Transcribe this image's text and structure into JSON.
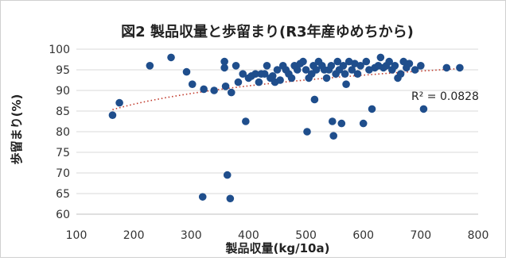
{
  "chart_data": {
    "type": "scatter",
    "title": "図2 製品収量と歩留まり(R3年産ゆめちから)",
    "xlabel": "製品収量(kg/10a)",
    "ylabel": "歩留まり(%)",
    "xlim": [
      100,
      800
    ],
    "ylim": [
      60,
      100
    ],
    "x_ticks": [
      "100",
      "200",
      "300",
      "400",
      "500",
      "600",
      "700",
      "800"
    ],
    "y_ticks": [
      "60",
      "65",
      "70",
      "75",
      "80",
      "85",
      "90",
      "95",
      "100"
    ],
    "grid": "horizontal",
    "legend": "none",
    "marker_color": "#1f4e8c",
    "trendline": {
      "style": "dotted",
      "color": "#c0392b",
      "type": "logarithmic"
    },
    "annotation": "R² = 0.0828",
    "points": [
      [
        163,
        84
      ],
      [
        175,
        87
      ],
      [
        228,
        96
      ],
      [
        265,
        98
      ],
      [
        292,
        94.5
      ],
      [
        302,
        91.5
      ],
      [
        320,
        64.2
      ],
      [
        322,
        90.3
      ],
      [
        340,
        90
      ],
      [
        358,
        97
      ],
      [
        358,
        95.5
      ],
      [
        360,
        91
      ],
      [
        363,
        69.5
      ],
      [
        368,
        63.8
      ],
      [
        370,
        89.5
      ],
      [
        378,
        96
      ],
      [
        382,
        92
      ],
      [
        390,
        94
      ],
      [
        395,
        82.5
      ],
      [
        400,
        93
      ],
      [
        405,
        93.5
      ],
      [
        412,
        94
      ],
      [
        418,
        92
      ],
      [
        422,
        94
      ],
      [
        428,
        94
      ],
      [
        432,
        96
      ],
      [
        438,
        93
      ],
      [
        442,
        93.5
      ],
      [
        446,
        92
      ],
      [
        450,
        95
      ],
      [
        455,
        92.5
      ],
      [
        460,
        96
      ],
      [
        465,
        95
      ],
      [
        470,
        94
      ],
      [
        475,
        93
      ],
      [
        480,
        96
      ],
      [
        485,
        95
      ],
      [
        490,
        96.5
      ],
      [
        495,
        97
      ],
      [
        500,
        95
      ],
      [
        502,
        80
      ],
      [
        505,
        93
      ],
      [
        510,
        94
      ],
      [
        513,
        96
      ],
      [
        515,
        87.8
      ],
      [
        518,
        95
      ],
      [
        522,
        97
      ],
      [
        528,
        96
      ],
      [
        532,
        95
      ],
      [
        536,
        93
      ],
      [
        540,
        95
      ],
      [
        544,
        96
      ],
      [
        546,
        82.5
      ],
      [
        548,
        79
      ],
      [
        552,
        94
      ],
      [
        555,
        97
      ],
      [
        558,
        95
      ],
      [
        562,
        82
      ],
      [
        565,
        96
      ],
      [
        568,
        94
      ],
      [
        570,
        91.5
      ],
      [
        575,
        97
      ],
      [
        580,
        95
      ],
      [
        585,
        96.5
      ],
      [
        590,
        94
      ],
      [
        595,
        96
      ],
      [
        600,
        82
      ],
      [
        605,
        97
      ],
      [
        610,
        95
      ],
      [
        615,
        85.5
      ],
      [
        620,
        95.5
      ],
      [
        626,
        96
      ],
      [
        630,
        98
      ],
      [
        635,
        95.5
      ],
      [
        640,
        96
      ],
      [
        645,
        97
      ],
      [
        650,
        95
      ],
      [
        655,
        96
      ],
      [
        660,
        93
      ],
      [
        665,
        94
      ],
      [
        670,
        97
      ],
      [
        675,
        95.5
      ],
      [
        680,
        96.5
      ],
      [
        690,
        95
      ],
      [
        700,
        96
      ],
      [
        705,
        85.5
      ],
      [
        745,
        95.5
      ],
      [
        768,
        95.5
      ]
    ]
  }
}
